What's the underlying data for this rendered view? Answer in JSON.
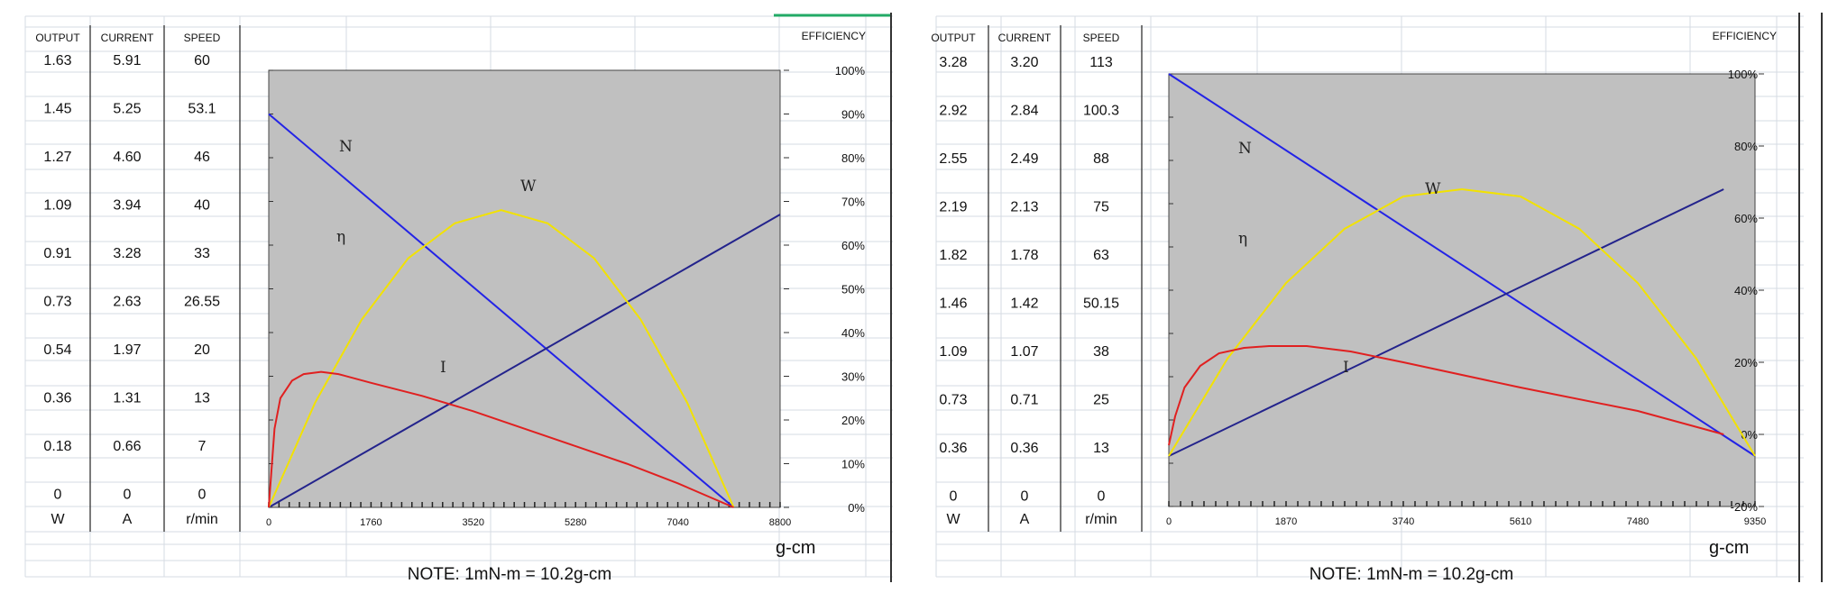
{
  "chart_data": [
    {
      "type": "line",
      "table": {
        "headers": [
          "OUTPUT",
          "CURRENT",
          "SPEED"
        ],
        "output": [
          "1.63",
          "1.45",
          "1.27",
          "1.09",
          "0.91",
          "0.73",
          "0.54",
          "0.36",
          "0.18",
          "0"
        ],
        "current": [
          "5.91",
          "5.25",
          "4.60",
          "3.94",
          "3.28",
          "2.63",
          "1.97",
          "1.31",
          "0.66",
          "0"
        ],
        "speed": [
          "60",
          "53.1",
          "46",
          "40",
          "33",
          "26.55",
          "20",
          "13",
          "7",
          "0"
        ],
        "units": [
          "W",
          "A",
          "r/min"
        ]
      },
      "efficiency_label": "EFFICIENCY",
      "efficiency_ticks": [
        "100%",
        "90%",
        "80%",
        "70%",
        "60%",
        "50%",
        "40%",
        "30%",
        "20%",
        "10%",
        "0%"
      ],
      "x_ticks": [
        "0",
        "1760",
        "3520",
        "5280",
        "7040",
        "8800"
      ],
      "xlim": [
        0,
        8800
      ],
      "xlabel": "g-cm",
      "note": "NOTE: 1mN-m = 10.2g-cm",
      "curve_labels": {
        "N": "N",
        "W": "W",
        "eta": "η",
        "I": "I"
      },
      "series": [
        {
          "name": "N",
          "color": "#2323e6",
          "x": [
            0,
            8000
          ],
          "y": [
            90,
            0
          ]
        },
        {
          "name": "I",
          "color": "#23238c",
          "x": [
            0,
            8800
          ],
          "y": [
            0,
            67
          ]
        },
        {
          "name": "W",
          "color": "#f2e200",
          "x": [
            0,
            800,
            1600,
            2400,
            3200,
            4000,
            4800,
            5600,
            6400,
            7200,
            8000
          ],
          "y": [
            0,
            24,
            43,
            57,
            65,
            68,
            65,
            57,
            43,
            24,
            0
          ]
        },
        {
          "name": "η",
          "color": "#e02020",
          "x": [
            0,
            100,
            200,
            400,
            600,
            900,
            1200,
            1760,
            2640,
            3520,
            4400,
            5280,
            6160,
            7040,
            8000
          ],
          "y": [
            0,
            18,
            25,
            29,
            30.5,
            31,
            30.5,
            28.5,
            25.5,
            22,
            18,
            14,
            10,
            5.5,
            0
          ]
        }
      ]
    },
    {
      "type": "line",
      "table": {
        "headers": [
          "OUTPUT",
          "CURRENT",
          "SPEED"
        ],
        "output": [
          "3.28",
          "2.92",
          "2.55",
          "2.19",
          "1.82",
          "1.46",
          "1.09",
          "0.73",
          "0.36",
          "0"
        ],
        "current": [
          "3.20",
          "2.84",
          "2.49",
          "2.13",
          "1.78",
          "1.42",
          "1.07",
          "0.71",
          "0.36",
          "0"
        ],
        "speed": [
          "113",
          "100.3",
          "88",
          "75",
          "63",
          "50.15",
          "38",
          "25",
          "13",
          "0"
        ],
        "units": [
          "W",
          "A",
          "r/min"
        ]
      },
      "efficiency_label": "EFFICIENCY",
      "efficiency_ticks": [
        "100%",
        "80%",
        "60%",
        "40%",
        "20%",
        "0%",
        "-20%"
      ],
      "x_ticks": [
        "0",
        "1870",
        "3740",
        "5610",
        "7480",
        "9350"
      ],
      "xlim": [
        0,
        9350
      ],
      "xlabel": "g-cm",
      "note": "NOTE: 1mN-m = 10.2g-cm",
      "curve_labels": {
        "N": "N",
        "W": "W",
        "eta": "η",
        "I": "I"
      },
      "series": [
        {
          "name": "N",
          "color": "#2323e6",
          "x": [
            0,
            9350
          ],
          "y": [
            100,
            -6
          ]
        },
        {
          "name": "I",
          "color": "#23238c",
          "x": [
            0,
            8850
          ],
          "y": [
            -6,
            68
          ]
        },
        {
          "name": "W",
          "color": "#f2e200",
          "x": [
            0,
            935,
            1870,
            2800,
            3740,
            4675,
            5610,
            6550,
            7480,
            8415,
            9350
          ],
          "y": [
            -6,
            21,
            42,
            57,
            66,
            68,
            66,
            57,
            42,
            21,
            -6
          ]
        },
        {
          "name": "η",
          "color": "#e02020",
          "x": [
            0,
            100,
            250,
            500,
            800,
            1200,
            1600,
            2200,
            2900,
            3740,
            5610,
            7480,
            8850
          ],
          "y": [
            -3,
            5,
            13,
            19,
            22.5,
            24,
            24.5,
            24.5,
            23,
            20,
            13,
            6.5,
            0
          ]
        }
      ]
    }
  ]
}
